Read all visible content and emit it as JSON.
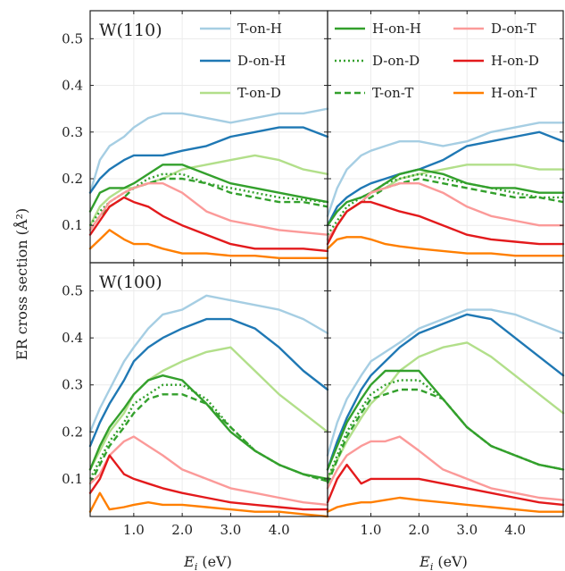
{
  "colors": {
    "T-on-H": "#a6cee3",
    "D-on-H": "#1f78b4",
    "T-on-D": "#b2df8a",
    "H-on-H": "#33a02c",
    "D-on-D": "#33a02c",
    "T-on-T": "#33a02c",
    "D-on-T": "#fb9a99",
    "H-on-D": "#e31a1c",
    "H-on-T": "#ff7f00"
  },
  "chart_data": {
    "type": "line",
    "ylabel": "ER cross section (Å²)",
    "xlabel": "E_i (eV)",
    "xlabel_main": "E",
    "xlabel_sub": "i",
    "xlabel_unit": "(eV)",
    "xlim": [
      0.1,
      5.0
    ],
    "ylim": [
      0.02,
      0.56
    ],
    "xticks": [
      1.0,
      2.0,
      3.0,
      4.0
    ],
    "xtick_labels": [
      "1.0",
      "2.0",
      "3.0",
      "4.0"
    ],
    "yticks": [
      0.1,
      0.2,
      0.3,
      0.4,
      0.5
    ],
    "ytick_labels": [
      "0.1",
      "0.2",
      "0.3",
      "0.4",
      "0.5"
    ],
    "grid": true,
    "legend_placement": "top (spanning upper panels)",
    "legend": [
      {
        "name": "T-on-H",
        "style": "solid"
      },
      {
        "name": "D-on-H",
        "style": "solid"
      },
      {
        "name": "T-on-D",
        "style": "solid"
      },
      {
        "name": "H-on-H",
        "style": "solid"
      },
      {
        "name": "D-on-D",
        "style": "dotted"
      },
      {
        "name": "T-on-T",
        "style": "dashed"
      },
      {
        "name": "D-on-T",
        "style": "solid"
      },
      {
        "name": "H-on-D",
        "style": "solid"
      },
      {
        "name": "H-on-T",
        "style": "solid"
      }
    ],
    "x": [
      0.1,
      0.3,
      0.5,
      0.8,
      1.0,
      1.3,
      1.6,
      2.0,
      2.5,
      3.0,
      3.5,
      4.0,
      4.5,
      5.0
    ],
    "panels": [
      {
        "label": "W(110)",
        "series": [
          {
            "name": "T-on-H",
            "values": [
              0.17,
              0.24,
              0.27,
              0.29,
              0.31,
              0.33,
              0.34,
              0.34,
              0.33,
              0.32,
              0.33,
              0.34,
              0.34,
              0.35
            ]
          },
          {
            "name": "D-on-H",
            "values": [
              0.17,
              0.2,
              0.22,
              0.24,
              0.25,
              0.25,
              0.25,
              0.26,
              0.27,
              0.29,
              0.3,
              0.31,
              0.31,
              0.29
            ]
          },
          {
            "name": "T-on-D",
            "values": [
              0.1,
              0.14,
              0.16,
              0.18,
              0.18,
              0.19,
              0.2,
              0.22,
              0.23,
              0.24,
              0.25,
              0.24,
              0.22,
              0.21
            ]
          },
          {
            "name": "H-on-H",
            "values": [
              0.13,
              0.17,
              0.18,
              0.18,
              0.19,
              0.21,
              0.23,
              0.23,
              0.21,
              0.19,
              0.18,
              0.17,
              0.16,
              0.15
            ]
          },
          {
            "name": "D-on-D",
            "values": [
              0.1,
              0.13,
              0.15,
              0.17,
              0.18,
              0.2,
              0.21,
              0.21,
              0.19,
              0.18,
              0.17,
              0.16,
              0.155,
              0.15
            ]
          },
          {
            "name": "T-on-T",
            "values": [
              0.09,
              0.12,
              0.14,
              0.16,
              0.18,
              0.19,
              0.2,
              0.2,
              0.19,
              0.17,
              0.16,
              0.15,
              0.15,
              0.14
            ]
          },
          {
            "name": "D-on-T",
            "values": [
              0.09,
              0.12,
              0.15,
              0.17,
              0.18,
              0.19,
              0.19,
              0.17,
              0.13,
              0.11,
              0.1,
              0.09,
              0.085,
              0.08
            ]
          },
          {
            "name": "H-on-D",
            "values": [
              0.08,
              0.11,
              0.14,
              0.16,
              0.15,
              0.14,
              0.12,
              0.1,
              0.08,
              0.06,
              0.05,
              0.05,
              0.05,
              0.045
            ]
          },
          {
            "name": "H-on-T",
            "values": [
              0.05,
              0.07,
              0.09,
              0.07,
              0.06,
              0.06,
              0.05,
              0.04,
              0.04,
              0.035,
              0.035,
              0.03,
              0.03,
              0.03
            ]
          }
        ]
      },
      {
        "label": "",
        "series": [
          {
            "name": "T-on-H",
            "values": [
              0.12,
              0.18,
              0.22,
              0.25,
              0.26,
              0.27,
              0.28,
              0.28,
              0.27,
              0.28,
              0.3,
              0.31,
              0.32,
              0.32
            ]
          },
          {
            "name": "D-on-H",
            "values": [
              0.1,
              0.14,
              0.16,
              0.18,
              0.19,
              0.2,
              0.21,
              0.22,
              0.24,
              0.27,
              0.28,
              0.29,
              0.3,
              0.28
            ]
          },
          {
            "name": "T-on-D",
            "values": [
              0.07,
              0.1,
              0.13,
              0.15,
              0.17,
              0.18,
              0.2,
              0.21,
              0.22,
              0.23,
              0.23,
              0.23,
              0.22,
              0.22
            ]
          },
          {
            "name": "H-on-H",
            "values": [
              0.1,
              0.13,
              0.15,
              0.16,
              0.17,
              0.19,
              0.21,
              0.22,
              0.21,
              0.19,
              0.18,
              0.18,
              0.17,
              0.17
            ]
          },
          {
            "name": "D-on-D",
            "values": [
              0.08,
              0.11,
              0.14,
              0.16,
              0.17,
              0.19,
              0.2,
              0.21,
              0.2,
              0.19,
              0.18,
              0.17,
              0.16,
              0.16
            ]
          },
          {
            "name": "T-on-T",
            "values": [
              0.07,
              0.1,
              0.13,
              0.15,
              0.16,
              0.18,
              0.19,
              0.2,
              0.19,
              0.18,
              0.17,
              0.16,
              0.16,
              0.15
            ]
          },
          {
            "name": "D-on-T",
            "values": [
              0.07,
              0.1,
              0.13,
              0.15,
              0.17,
              0.18,
              0.19,
              0.19,
              0.17,
              0.14,
              0.12,
              0.11,
              0.1,
              0.1
            ]
          },
          {
            "name": "H-on-D",
            "values": [
              0.06,
              0.1,
              0.13,
              0.15,
              0.15,
              0.14,
              0.13,
              0.12,
              0.1,
              0.08,
              0.07,
              0.065,
              0.06,
              0.06
            ]
          },
          {
            "name": "H-on-T",
            "values": [
              0.05,
              0.07,
              0.075,
              0.075,
              0.07,
              0.06,
              0.055,
              0.05,
              0.045,
              0.04,
              0.04,
              0.035,
              0.035,
              0.035
            ]
          }
        ]
      },
      {
        "label": "W(100)",
        "series": [
          {
            "name": "T-on-H",
            "values": [
              0.2,
              0.25,
              0.29,
              0.35,
              0.38,
              0.42,
              0.45,
              0.46,
              0.49,
              0.48,
              0.47,
              0.46,
              0.44,
              0.41
            ]
          },
          {
            "name": "D-on-H",
            "values": [
              0.17,
              0.22,
              0.26,
              0.31,
              0.35,
              0.38,
              0.4,
              0.42,
              0.44,
              0.44,
              0.42,
              0.38,
              0.33,
              0.29
            ]
          },
          {
            "name": "T-on-D",
            "values": [
              0.12,
              0.16,
              0.2,
              0.24,
              0.28,
              0.31,
              0.33,
              0.35,
              0.37,
              0.38,
              0.33,
              0.28,
              0.24,
              0.2
            ]
          },
          {
            "name": "H-on-H",
            "values": [
              0.12,
              0.17,
              0.21,
              0.25,
              0.28,
              0.31,
              0.32,
              0.31,
              0.26,
              0.2,
              0.16,
              0.13,
              0.11,
              0.1
            ]
          },
          {
            "name": "D-on-D",
            "values": [
              0.1,
              0.14,
              0.18,
              0.22,
              0.26,
              0.28,
              0.3,
              0.3,
              0.27,
              0.21,
              0.16,
              0.13,
              0.11,
              0.095
            ]
          },
          {
            "name": "T-on-T",
            "values": [
              0.09,
              0.13,
              0.17,
              0.21,
              0.24,
              0.27,
              0.28,
              0.28,
              0.26,
              0.21,
              0.16,
              0.13,
              0.11,
              0.095
            ]
          },
          {
            "name": "D-on-T",
            "values": [
              0.09,
              0.11,
              0.15,
              0.18,
              0.19,
              0.17,
              0.15,
              0.12,
              0.1,
              0.08,
              0.07,
              0.06,
              0.05,
              0.045
            ]
          },
          {
            "name": "H-on-D",
            "values": [
              0.07,
              0.1,
              0.15,
              0.11,
              0.1,
              0.09,
              0.08,
              0.07,
              0.06,
              0.05,
              0.045,
              0.04,
              0.035,
              0.035
            ]
          },
          {
            "name": "H-on-T",
            "values": [
              0.03,
              0.07,
              0.035,
              0.04,
              0.045,
              0.05,
              0.045,
              0.045,
              0.04,
              0.035,
              0.03,
              0.03,
              0.025,
              0.02
            ]
          }
        ]
      },
      {
        "label": "",
        "series": [
          {
            "name": "T-on-H",
            "values": [
              0.15,
              0.22,
              0.27,
              0.32,
              0.35,
              0.37,
              0.39,
              0.42,
              0.44,
              0.46,
              0.46,
              0.45,
              0.43,
              0.41
            ]
          },
          {
            "name": "D-on-H",
            "values": [
              0.12,
              0.18,
              0.23,
              0.29,
              0.32,
              0.35,
              0.38,
              0.41,
              0.43,
              0.45,
              0.44,
              0.4,
              0.36,
              0.32
            ]
          },
          {
            "name": "T-on-D",
            "values": [
              0.1,
              0.14,
              0.18,
              0.23,
              0.26,
              0.29,
              0.33,
              0.36,
              0.38,
              0.39,
              0.36,
              0.32,
              0.28,
              0.24
            ]
          },
          {
            "name": "H-on-H",
            "values": [
              0.12,
              0.17,
              0.22,
              0.27,
              0.3,
              0.33,
              0.33,
              0.33,
              0.27,
              0.21,
              0.17,
              0.15,
              0.13,
              0.12
            ]
          },
          {
            "name": "D-on-D",
            "values": [
              0.1,
              0.15,
              0.2,
              0.25,
              0.28,
              0.3,
              0.31,
              0.31,
              0.27,
              0.21,
              0.17,
              0.15,
              0.13,
              0.12
            ]
          },
          {
            "name": "T-on-T",
            "values": [
              0.09,
              0.14,
              0.19,
              0.24,
              0.27,
              0.28,
              0.29,
              0.29,
              0.27,
              0.21,
              0.17,
              0.15,
              0.13,
              0.12
            ]
          },
          {
            "name": "D-on-T",
            "values": [
              0.08,
              0.12,
              0.15,
              0.17,
              0.18,
              0.18,
              0.19,
              0.16,
              0.12,
              0.1,
              0.08,
              0.07,
              0.06,
              0.055
            ]
          },
          {
            "name": "H-on-D",
            "values": [
              0.05,
              0.1,
              0.13,
              0.09,
              0.1,
              0.1,
              0.1,
              0.1,
              0.09,
              0.08,
              0.07,
              0.06,
              0.05,
              0.045
            ]
          },
          {
            "name": "H-on-T",
            "values": [
              0.03,
              0.04,
              0.045,
              0.05,
              0.05,
              0.055,
              0.06,
              0.055,
              0.05,
              0.045,
              0.04,
              0.035,
              0.03,
              0.03
            ]
          }
        ]
      }
    ]
  }
}
